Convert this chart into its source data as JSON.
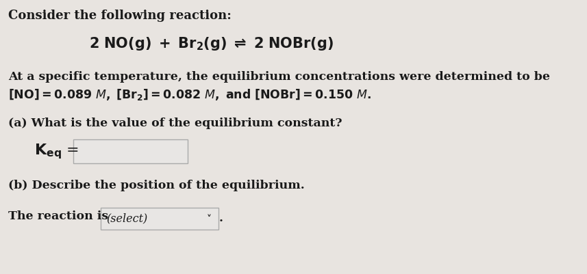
{
  "background_color": "#e8e4e0",
  "text_color": "#1a1a1a",
  "title_line": "Consider the following reaction:",
  "body_line1": "At a specific temperature, the equilibrium concentrations were determined to be",
  "body_line2": "[NO] = 0.089 M, [Br₂] = 0.082 M, and [NOBr] = 0.150 M.",
  "part_a": "(a) What is the value of the equilibrium constant?",
  "part_b": "(b) Describe the position of the equilibrium.",
  "reaction_is": "The reaction is",
  "select_label": "(select)",
  "input_box_color": "#e8e6e4",
  "input_box_border": "#aaaaaa",
  "select_box_color": "#e8e6e4",
  "font_size_title": 13,
  "font_size_reaction": 14,
  "font_size_body": 12.5,
  "font_size_part": 12.5,
  "font_size_keq": 13
}
